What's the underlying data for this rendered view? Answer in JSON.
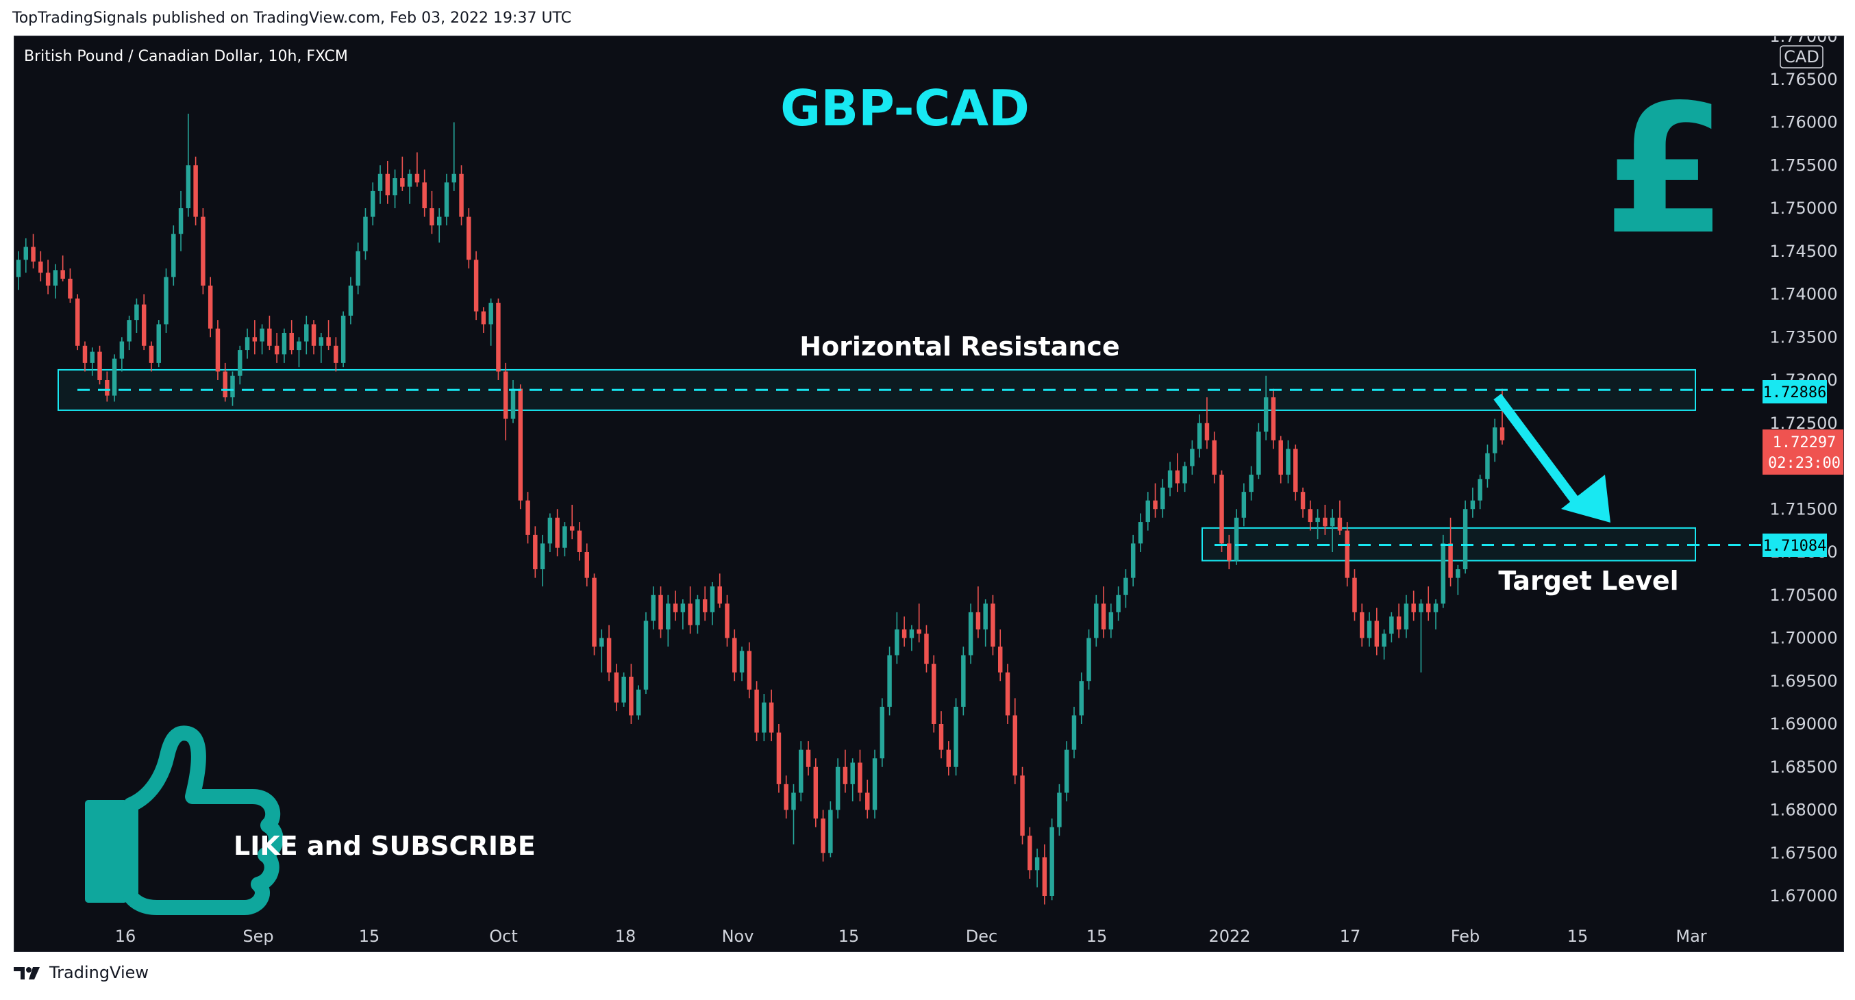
{
  "header": {
    "published_by": "TopTradingSignals published on TradingView.com, Feb 03, 2022 19:37 UTC"
  },
  "footer": {
    "brand": "TradingView",
    "logo_icon": "tradingview-logo-icon"
  },
  "chart_data": {
    "type": "candlestick",
    "title": "GBP-CAD",
    "symbol": "British Pound / Canadian Dollar, 10h, FXCM",
    "currency": "CAD",
    "ylim": [
      1.6675,
      1.77
    ],
    "y_ticks": [
      "1.77000",
      "1.76500",
      "1.76000",
      "1.75500",
      "1.75000",
      "1.74500",
      "1.74000",
      "1.73500",
      "1.73000",
      "1.72500",
      "1.72000",
      "1.71500",
      "1.71000",
      "1.70500",
      "1.70000",
      "1.69500",
      "1.69000",
      "1.68500",
      "1.68000",
      "1.67500",
      "1.67000"
    ],
    "x_ticks": [
      "16",
      "Sep",
      "15",
      "Oct",
      "18",
      "Nov",
      "15",
      "Dec",
      "15",
      "2022",
      "17",
      "Feb",
      "15",
      "Mar"
    ],
    "annotations": {
      "resistance_label": "Horizontal Resistance",
      "resistance_price": "1.72886",
      "resistance_level": 1.72886,
      "target_label": "Target Level",
      "target_price": "1.71084",
      "target_level": 1.71084,
      "current_price": "1.72297",
      "current_level": 1.72297,
      "countdown": "02:23:00",
      "cta": "LIKE and SUBSCRIBE",
      "pound_symbol": "£",
      "thumbs_icon": "thumbs-up-icon"
    },
    "colors": {
      "up": "#26a69a",
      "down": "#ef5350",
      "accent": "#18e8f2",
      "price_tag": "#ef5350",
      "background": "#0c0e15"
    },
    "candles": [
      [
        1.742,
        1.745,
        1.7405,
        1.744
      ],
      [
        1.744,
        1.7465,
        1.7425,
        1.7455
      ],
      [
        1.7455,
        1.747,
        1.743,
        1.7438
      ],
      [
        1.7438,
        1.745,
        1.7415,
        1.7425
      ],
      [
        1.7425,
        1.744,
        1.74,
        1.741
      ],
      [
        1.741,
        1.7435,
        1.7395,
        1.7428
      ],
      [
        1.7428,
        1.7445,
        1.7415,
        1.7418
      ],
      [
        1.7418,
        1.743,
        1.739,
        1.7395
      ],
      [
        1.7395,
        1.74,
        1.7335,
        1.734
      ],
      [
        1.734,
        1.7345,
        1.731,
        1.732
      ],
      [
        1.732,
        1.7338,
        1.7305,
        1.7333
      ],
      [
        1.7333,
        1.734,
        1.7295,
        1.73
      ],
      [
        1.73,
        1.731,
        1.7275,
        1.7282
      ],
      [
        1.7282,
        1.733,
        1.7275,
        1.7325
      ],
      [
        1.7325,
        1.735,
        1.731,
        1.7345
      ],
      [
        1.7345,
        1.7375,
        1.7335,
        1.737
      ],
      [
        1.737,
        1.7395,
        1.7355,
        1.7388
      ],
      [
        1.7388,
        1.74,
        1.7335,
        1.734
      ],
      [
        1.734,
        1.7345,
        1.731,
        1.732
      ],
      [
        1.732,
        1.737,
        1.7315,
        1.7365
      ],
      [
        1.7365,
        1.743,
        1.7355,
        1.742
      ],
      [
        1.742,
        1.748,
        1.741,
        1.747
      ],
      [
        1.747,
        1.752,
        1.745,
        1.75
      ],
      [
        1.75,
        1.761,
        1.749,
        1.755
      ],
      [
        1.755,
        1.756,
        1.748,
        1.749
      ],
      [
        1.749,
        1.75,
        1.74,
        1.741
      ],
      [
        1.741,
        1.742,
        1.735,
        1.736
      ],
      [
        1.736,
        1.737,
        1.73,
        1.731
      ],
      [
        1.731,
        1.732,
        1.7275,
        1.728
      ],
      [
        1.728,
        1.731,
        1.727,
        1.7305
      ],
      [
        1.7305,
        1.734,
        1.7295,
        1.7335
      ],
      [
        1.7335,
        1.736,
        1.7325,
        1.735
      ],
      [
        1.735,
        1.737,
        1.733,
        1.7345
      ],
      [
        1.7345,
        1.7365,
        1.733,
        1.736
      ],
      [
        1.736,
        1.7375,
        1.7335,
        1.734
      ],
      [
        1.734,
        1.7355,
        1.732,
        1.733
      ],
      [
        1.733,
        1.736,
        1.732,
        1.7355
      ],
      [
        1.7355,
        1.737,
        1.733,
        1.7335
      ],
      [
        1.7335,
        1.735,
        1.7315,
        1.7345
      ],
      [
        1.7345,
        1.7375,
        1.733,
        1.7365
      ],
      [
        1.7365,
        1.737,
        1.733,
        1.734
      ],
      [
        1.734,
        1.7355,
        1.732,
        1.735
      ],
      [
        1.735,
        1.737,
        1.7335,
        1.734
      ],
      [
        1.734,
        1.735,
        1.731,
        1.732
      ],
      [
        1.732,
        1.738,
        1.7315,
        1.7375
      ],
      [
        1.7375,
        1.742,
        1.7365,
        1.741
      ],
      [
        1.741,
        1.746,
        1.74,
        1.745
      ],
      [
        1.745,
        1.75,
        1.744,
        1.749
      ],
      [
        1.749,
        1.753,
        1.748,
        1.752
      ],
      [
        1.752,
        1.755,
        1.7505,
        1.754
      ],
      [
        1.754,
        1.7555,
        1.7505,
        1.7515
      ],
      [
        1.7515,
        1.7545,
        1.75,
        1.7535
      ],
      [
        1.7535,
        1.756,
        1.752,
        1.7525
      ],
      [
        1.7525,
        1.7545,
        1.7505,
        1.754
      ],
      [
        1.754,
        1.7565,
        1.7525,
        1.753
      ],
      [
        1.753,
        1.7545,
        1.749,
        1.75
      ],
      [
        1.75,
        1.752,
        1.747,
        1.748
      ],
      [
        1.748,
        1.75,
        1.746,
        1.749
      ],
      [
        1.749,
        1.754,
        1.748,
        1.753
      ],
      [
        1.753,
        1.76,
        1.752,
        1.754
      ],
      [
        1.754,
        1.755,
        1.748,
        1.749
      ],
      [
        1.749,
        1.75,
        1.743,
        1.744
      ],
      [
        1.744,
        1.745,
        1.737,
        1.738
      ],
      [
        1.738,
        1.7385,
        1.7355,
        1.7365
      ],
      [
        1.7365,
        1.7395,
        1.734,
        1.739
      ],
      [
        1.739,
        1.7395,
        1.73,
        1.731
      ],
      [
        1.731,
        1.732,
        1.723,
        1.7255
      ],
      [
        1.7255,
        1.73,
        1.725,
        1.729
      ],
      [
        1.729,
        1.7295,
        1.715,
        1.716
      ],
      [
        1.716,
        1.717,
        1.711,
        1.712
      ],
      [
        1.712,
        1.713,
        1.707,
        1.708
      ],
      [
        1.708,
        1.712,
        1.706,
        1.711
      ],
      [
        1.711,
        1.7145,
        1.71,
        1.714
      ],
      [
        1.714,
        1.715,
        1.7095,
        1.7105
      ],
      [
        1.7105,
        1.7135,
        1.7095,
        1.713
      ],
      [
        1.713,
        1.7155,
        1.7115,
        1.7125
      ],
      [
        1.7125,
        1.7135,
        1.709,
        1.71
      ],
      [
        1.71,
        1.711,
        1.706,
        1.707
      ],
      [
        1.707,
        1.7075,
        1.698,
        1.699
      ],
      [
        1.699,
        1.701,
        1.696,
        1.7
      ],
      [
        1.7,
        1.7015,
        1.695,
        1.696
      ],
      [
        1.696,
        1.697,
        1.6915,
        1.6925
      ],
      [
        1.6925,
        1.696,
        1.692,
        1.6955
      ],
      [
        1.6955,
        1.697,
        1.69,
        1.691
      ],
      [
        1.691,
        1.6945,
        1.6905,
        1.694
      ],
      [
        1.694,
        1.703,
        1.6935,
        1.702
      ],
      [
        1.702,
        1.706,
        1.701,
        1.705
      ],
      [
        1.705,
        1.706,
        1.7,
        1.701
      ],
      [
        1.701,
        1.705,
        1.699,
        1.704
      ],
      [
        1.704,
        1.7055,
        1.702,
        1.703
      ],
      [
        1.703,
        1.7045,
        1.701,
        1.704
      ],
      [
        1.704,
        1.706,
        1.7005,
        1.7015
      ],
      [
        1.7015,
        1.705,
        1.7005,
        1.7045
      ],
      [
        1.7045,
        1.706,
        1.702,
        1.703
      ],
      [
        1.703,
        1.7065,
        1.7015,
        1.706
      ],
      [
        1.706,
        1.7075,
        1.7035,
        1.704
      ],
      [
        1.704,
        1.705,
        1.699,
        1.7
      ],
      [
        1.7,
        1.701,
        1.695,
        1.696
      ],
      [
        1.696,
        1.699,
        1.695,
        1.6985
      ],
      [
        1.6985,
        1.6995,
        1.693,
        1.694
      ],
      [
        1.694,
        1.695,
        1.688,
        1.689
      ],
      [
        1.689,
        1.6935,
        1.688,
        1.6925
      ],
      [
        1.6925,
        1.694,
        1.688,
        1.689
      ],
      [
        1.689,
        1.69,
        1.682,
        1.683
      ],
      [
        1.683,
        1.684,
        1.679,
        1.68
      ],
      [
        1.68,
        1.683,
        1.676,
        1.682
      ],
      [
        1.682,
        1.688,
        1.681,
        1.687
      ],
      [
        1.687,
        1.688,
        1.684,
        1.685
      ],
      [
        1.685,
        1.686,
        1.678,
        1.679
      ],
      [
        1.679,
        1.68,
        1.674,
        1.675
      ],
      [
        1.675,
        1.681,
        1.6745,
        1.68
      ],
      [
        1.68,
        1.686,
        1.679,
        1.685
      ],
      [
        1.685,
        1.687,
        1.682,
        1.683
      ],
      [
        1.683,
        1.686,
        1.681,
        1.6855
      ],
      [
        1.6855,
        1.687,
        1.681,
        1.682
      ],
      [
        1.682,
        1.6835,
        1.679,
        1.68
      ],
      [
        1.68,
        1.687,
        1.679,
        1.686
      ],
      [
        1.686,
        1.693,
        1.685,
        1.692
      ],
      [
        1.692,
        1.699,
        1.691,
        1.698
      ],
      [
        1.698,
        1.703,
        1.697,
        1.701
      ],
      [
        1.701,
        1.7025,
        1.699,
        1.7
      ],
      [
        1.7,
        1.7015,
        1.6985,
        1.701
      ],
      [
        1.701,
        1.704,
        1.6995,
        1.7005
      ],
      [
        1.7005,
        1.7015,
        1.696,
        1.697
      ],
      [
        1.697,
        1.698,
        1.689,
        1.69
      ],
      [
        1.69,
        1.6915,
        1.686,
        1.687
      ],
      [
        1.687,
        1.688,
        1.684,
        1.685
      ],
      [
        1.685,
        1.693,
        1.684,
        1.692
      ],
      [
        1.692,
        1.699,
        1.691,
        1.698
      ],
      [
        1.698,
        1.704,
        1.697,
        1.703
      ],
      [
        1.703,
        1.706,
        1.7,
        1.701
      ],
      [
        1.701,
        1.7045,
        1.699,
        1.704
      ],
      [
        1.704,
        1.705,
        1.698,
        1.699
      ],
      [
        1.699,
        1.701,
        1.695,
        1.696
      ],
      [
        1.696,
        1.697,
        1.69,
        1.691
      ],
      [
        1.691,
        1.693,
        1.683,
        1.684
      ],
      [
        1.684,
        1.685,
        1.676,
        1.677
      ],
      [
        1.677,
        1.678,
        1.672,
        1.673
      ],
      [
        1.673,
        1.6755,
        1.671,
        1.6745
      ],
      [
        1.6745,
        1.676,
        1.669,
        1.67
      ],
      [
        1.67,
        1.679,
        1.6695,
        1.678
      ],
      [
        1.678,
        1.683,
        1.677,
        1.682
      ],
      [
        1.682,
        1.688,
        1.681,
        1.687
      ],
      [
        1.687,
        1.692,
        1.686,
        1.691
      ],
      [
        1.691,
        1.696,
        1.69,
        1.695
      ],
      [
        1.695,
        1.701,
        1.694,
        1.7
      ],
      [
        1.7,
        1.705,
        1.699,
        1.704
      ],
      [
        1.704,
        1.706,
        1.7,
        1.701
      ],
      [
        1.701,
        1.704,
        1.7,
        1.703
      ],
      [
        1.703,
        1.706,
        1.702,
        1.705
      ],
      [
        1.705,
        1.708,
        1.7035,
        1.707
      ],
      [
        1.707,
        1.712,
        1.706,
        1.711
      ],
      [
        1.711,
        1.7145,
        1.71,
        1.7135
      ],
      [
        1.7135,
        1.717,
        1.7125,
        1.716
      ],
      [
        1.716,
        1.718,
        1.714,
        1.715
      ],
      [
        1.715,
        1.7185,
        1.714,
        1.7175
      ],
      [
        1.7175,
        1.7205,
        1.7165,
        1.7195
      ],
      [
        1.7195,
        1.7215,
        1.717,
        1.718
      ],
      [
        1.718,
        1.7205,
        1.717,
        1.72
      ],
      [
        1.72,
        1.723,
        1.719,
        1.722
      ],
      [
        1.722,
        1.726,
        1.721,
        1.725
      ],
      [
        1.725,
        1.728,
        1.722,
        1.723
      ],
      [
        1.723,
        1.724,
        1.718,
        1.719
      ],
      [
        1.719,
        1.7195,
        1.71,
        1.711
      ],
      [
        1.711,
        1.712,
        1.708,
        1.709
      ],
      [
        1.709,
        1.715,
        1.7085,
        1.714
      ],
      [
        1.714,
        1.718,
        1.713,
        1.717
      ],
      [
        1.717,
        1.72,
        1.716,
        1.719
      ],
      [
        1.719,
        1.725,
        1.7185,
        1.724
      ],
      [
        1.724,
        1.7305,
        1.723,
        1.728
      ],
      [
        1.728,
        1.729,
        1.722,
        1.723
      ],
      [
        1.723,
        1.7235,
        1.718,
        1.719
      ],
      [
        1.719,
        1.723,
        1.718,
        1.722
      ],
      [
        1.722,
        1.7225,
        1.716,
        1.717
      ],
      [
        1.717,
        1.7175,
        1.714,
        1.715
      ],
      [
        1.715,
        1.716,
        1.7125,
        1.7135
      ],
      [
        1.7135,
        1.715,
        1.7115,
        1.714
      ],
      [
        1.714,
        1.7155,
        1.712,
        1.713
      ],
      [
        1.713,
        1.715,
        1.71,
        1.714
      ],
      [
        1.714,
        1.716,
        1.712,
        1.7125
      ],
      [
        1.7125,
        1.7135,
        1.706,
        1.707
      ],
      [
        1.707,
        1.708,
        1.702,
        1.703
      ],
      [
        1.703,
        1.704,
        1.699,
        1.7
      ],
      [
        1.7,
        1.703,
        1.699,
        1.702
      ],
      [
        1.702,
        1.7035,
        1.698,
        1.699
      ],
      [
        1.699,
        1.701,
        1.6975,
        1.7005
      ],
      [
        1.7005,
        1.703,
        1.6995,
        1.7025
      ],
      [
        1.7025,
        1.704,
        1.7,
        1.701
      ],
      [
        1.701,
        1.705,
        1.7,
        1.704
      ],
      [
        1.704,
        1.7055,
        1.702,
        1.703
      ],
      [
        1.703,
        1.7045,
        1.696,
        1.704
      ],
      [
        1.704,
        1.706,
        1.702,
        1.703
      ],
      [
        1.703,
        1.7045,
        1.701,
        1.704
      ],
      [
        1.704,
        1.712,
        1.7035,
        1.711
      ],
      [
        1.711,
        1.714,
        1.706,
        1.707
      ],
      [
        1.707,
        1.7085,
        1.705,
        1.708
      ],
      [
        1.708,
        1.716,
        1.7075,
        1.715
      ],
      [
        1.715,
        1.7175,
        1.714,
        1.716
      ],
      [
        1.716,
        1.719,
        1.715,
        1.7185
      ],
      [
        1.7185,
        1.7225,
        1.7175,
        1.7215
      ],
      [
        1.7215,
        1.7255,
        1.7205,
        1.7245
      ],
      [
        1.7245,
        1.729,
        1.7225,
        1.723
      ]
    ]
  }
}
